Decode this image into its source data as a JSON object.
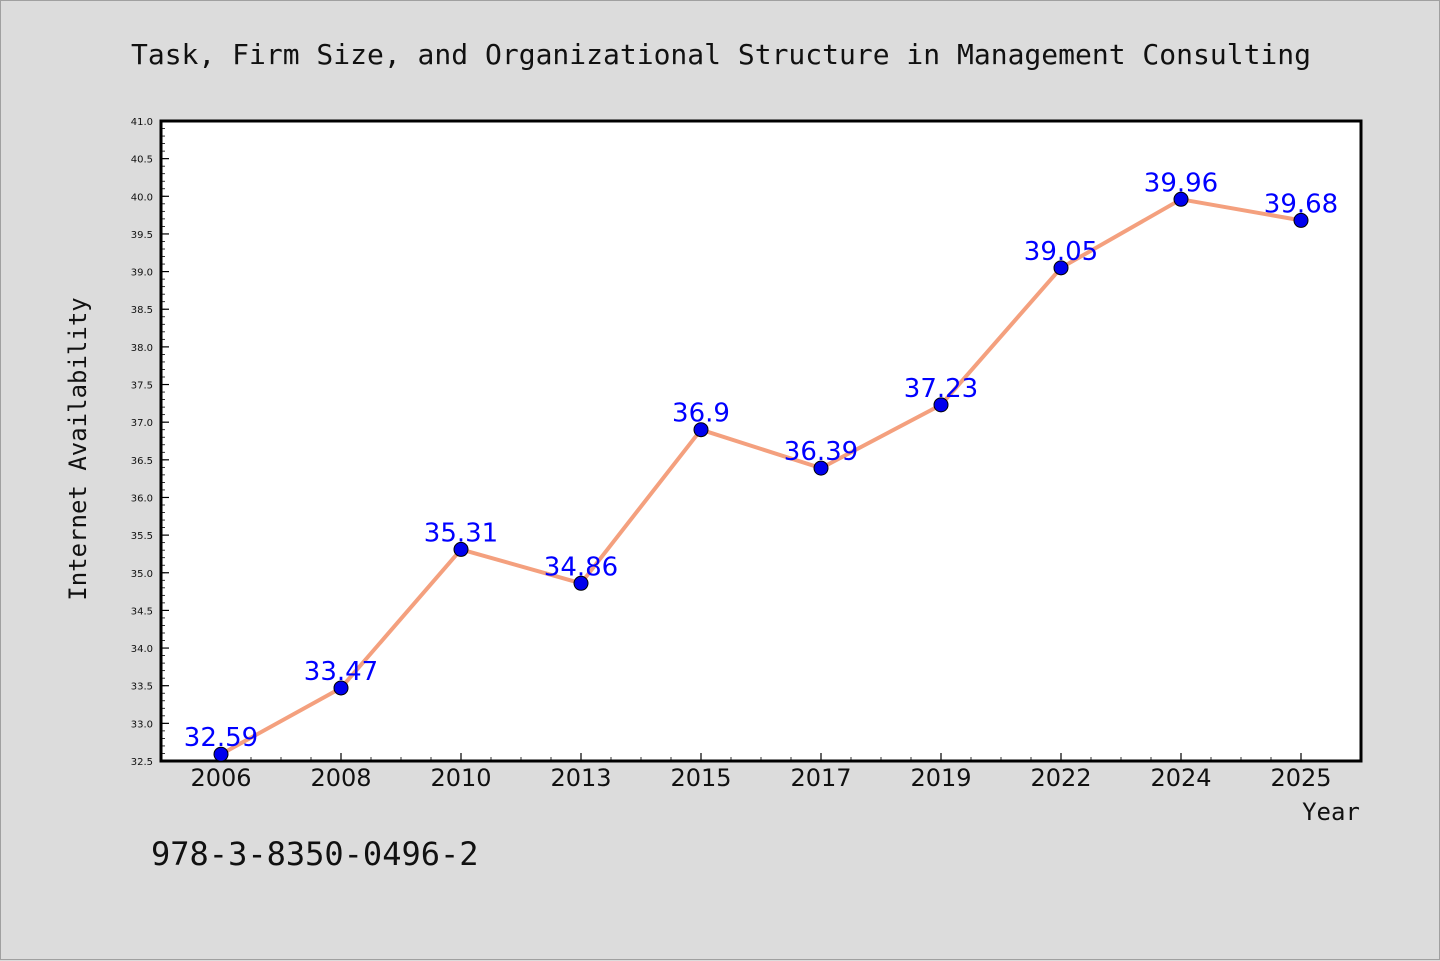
{
  "chart_data": {
    "type": "line",
    "title": "Task, Firm Size, and Organizational Structure in Management Consulting",
    "xlabel": "Year",
    "ylabel": "Internet Availability",
    "categories": [
      "2006",
      "2008",
      "2010",
      "2013",
      "2015",
      "2017",
      "2019",
      "2022",
      "2024",
      "2025"
    ],
    "series": [
      {
        "values": [
          32.59,
          33.47,
          35.31,
          34.86,
          36.9,
          36.39,
          37.23,
          39.05,
          39.96,
          39.68
        ],
        "data_labels": [
          "32.59",
          "33.47",
          "35.31",
          "34.86",
          "36.9",
          "36.39",
          "37.23",
          "39.05",
          "39.96",
          "39.68"
        ],
        "line_color": "#f4a07e",
        "marker_color": "#0000ee"
      }
    ],
    "ylim": [
      32.5,
      41.0
    ],
    "yticks": [
      "32.5",
      "33.0",
      "33.5",
      "34.0",
      "34.5",
      "35.0",
      "35.5",
      "36.0",
      "36.5",
      "37.0",
      "37.5",
      "38.0",
      "38.5",
      "39.0",
      "39.5",
      "40.0",
      "40.5",
      "41.0"
    ],
    "y_minor_ticks": true,
    "grid": false,
    "legend": "none"
  },
  "annotation": {
    "isbn": "978-3-8350-0496-2"
  },
  "colors": {
    "background": "#dcdcdc",
    "plot_background": "#ffffff",
    "label_color": "#0000ff"
  }
}
